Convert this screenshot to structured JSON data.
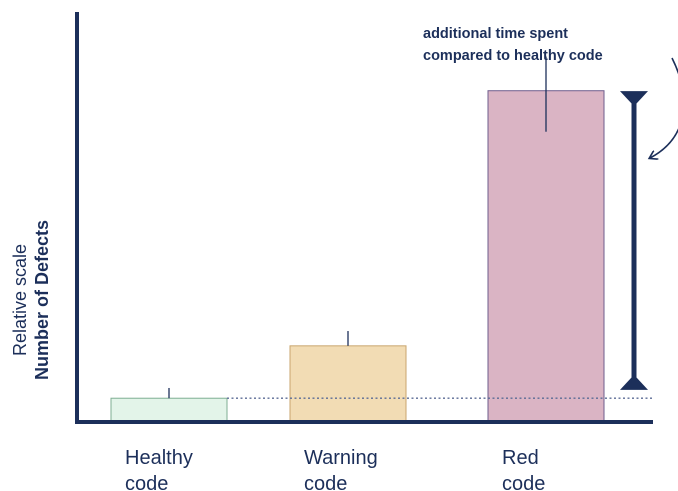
{
  "chart_data": {
    "type": "bar",
    "categories": [
      "Healthy code",
      "Warning code",
      "Red code"
    ],
    "category_lines": [
      [
        "Healthy",
        "code"
      ],
      [
        "Warning",
        "code"
      ],
      [
        "Red",
        "code"
      ]
    ],
    "values": [
      1.0,
      3.3,
      14.5
    ],
    "error_bars": [
      [
        1.0,
        1.45
      ],
      [
        3.3,
        3.95
      ],
      [
        12.7,
        16.0
      ]
    ],
    "ylim": [
      0,
      18
    ],
    "ylabel_scale": "Relative scale",
    "ylabel": "Number of Defects",
    "xlabel": "",
    "title": "",
    "baseline_reference": 1.0,
    "range_indicator": [
      1.5,
      14.35
    ],
    "annotation": [
      "additional time spent",
      "compared to healthy code"
    ],
    "colors": {
      "axis": "#1c2f5a",
      "bars": [
        "#e3f4e9",
        "#f2dcb4",
        "#dab4c4"
      ],
      "bar_edges": [
        "#7fae93",
        "#c9a56e",
        "#6e5c8c"
      ],
      "reference_line": "#5b6b95"
    },
    "grid": false,
    "legend": "none"
  }
}
